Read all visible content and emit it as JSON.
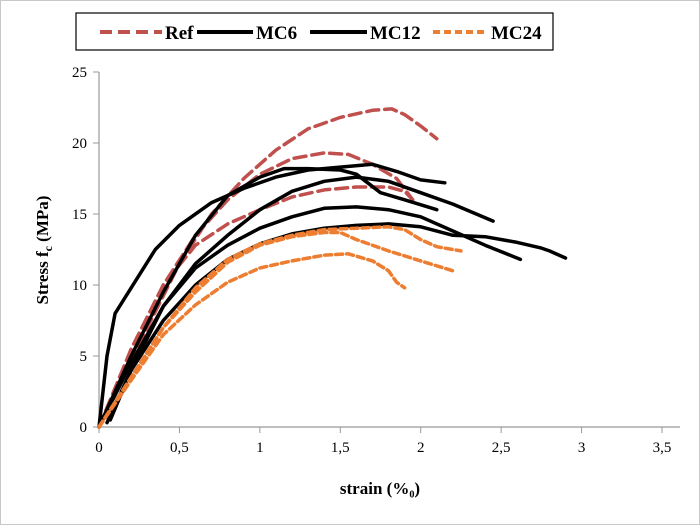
{
  "chart_data": {
    "type": "line",
    "title": "",
    "xlabel": "strain (%₀)",
    "ylabel_main": "Stress f",
    "ylabel_sub": "c",
    "ylabel_tail": " (MPa)",
    "xlim": [
      0,
      3.5
    ],
    "ylim": [
      0,
      25
    ],
    "xticks": [
      "0",
      "0,5",
      "1",
      "1,5",
      "2",
      "2,5",
      "3",
      "3,5"
    ],
    "yticks": [
      "0",
      "5",
      "10",
      "15",
      "20",
      "25"
    ],
    "grid": false,
    "legend_position": "top",
    "legend": [
      {
        "name": "Ref",
        "color": "#C0504D",
        "dash": "dashed"
      },
      {
        "name": "MC6",
        "color": "#000000",
        "dash": "solid"
      },
      {
        "name": "MC12",
        "color": "#000000",
        "dash": "dashdot"
      },
      {
        "name": "MC24",
        "color": "#ED7D31",
        "dash": "dotted"
      }
    ],
    "series": [
      {
        "group": "Ref",
        "points": [
          [
            0,
            0
          ],
          [
            0.1,
            2.5
          ],
          [
            0.3,
            7
          ],
          [
            0.5,
            11.5
          ],
          [
            0.7,
            15
          ],
          [
            0.9,
            17.5
          ],
          [
            1.1,
            19.5
          ],
          [
            1.3,
            21
          ],
          [
            1.5,
            21.8
          ],
          [
            1.7,
            22.3
          ],
          [
            1.82,
            22.4
          ],
          [
            1.9,
            22
          ],
          [
            2.0,
            21.2
          ],
          [
            2.1,
            20.3
          ]
        ]
      },
      {
        "group": "Ref",
        "points": [
          [
            0,
            0
          ],
          [
            0.2,
            5
          ],
          [
            0.4,
            10
          ],
          [
            0.6,
            13.5
          ],
          [
            0.8,
            16
          ],
          [
            1.0,
            17.8
          ],
          [
            1.2,
            18.9
          ],
          [
            1.4,
            19.3
          ],
          [
            1.55,
            19.2
          ],
          [
            1.7,
            18.5
          ],
          [
            1.85,
            17.5
          ],
          [
            1.95,
            16
          ]
        ]
      },
      {
        "group": "Ref",
        "points": [
          [
            0,
            0
          ],
          [
            0.2,
            5.5
          ],
          [
            0.4,
            10
          ],
          [
            0.6,
            12.8
          ],
          [
            0.8,
            14.3
          ],
          [
            1.0,
            15.3
          ],
          [
            1.2,
            16.2
          ],
          [
            1.4,
            16.7
          ],
          [
            1.6,
            16.9
          ],
          [
            1.8,
            16.9
          ],
          [
            1.9,
            16.6
          ],
          [
            1.95,
            16
          ]
        ]
      },
      {
        "group": "MC6",
        "points": [
          [
            0,
            0
          ],
          [
            0.05,
            5
          ],
          [
            0.1,
            8
          ],
          [
            0.2,
            9.8
          ],
          [
            0.35,
            12.5
          ],
          [
            0.5,
            14.2
          ],
          [
            0.7,
            15.8
          ],
          [
            0.9,
            16.8
          ],
          [
            1.1,
            17.6
          ],
          [
            1.3,
            18.1
          ],
          [
            1.5,
            18.3
          ],
          [
            1.7,
            18.5
          ],
          [
            1.85,
            18
          ],
          [
            2.0,
            17.4
          ],
          [
            2.15,
            17.2
          ]
        ]
      },
      {
        "group": "MC6",
        "points": [
          [
            0,
            0
          ],
          [
            0.2,
            5
          ],
          [
            0.4,
            9.5
          ],
          [
            0.6,
            13.5
          ],
          [
            0.8,
            16.3
          ],
          [
            1.0,
            17.6
          ],
          [
            1.15,
            18.2
          ],
          [
            1.3,
            18.2
          ],
          [
            1.5,
            18.1
          ],
          [
            1.6,
            17.8
          ],
          [
            1.75,
            16.5
          ],
          [
            1.9,
            16
          ],
          [
            2.1,
            15.3
          ]
        ]
      },
      {
        "group": "MC12",
        "points": [
          [
            0.07,
            0.5
          ],
          [
            0.2,
            4
          ],
          [
            0.4,
            8.5
          ],
          [
            0.6,
            11.5
          ],
          [
            0.8,
            13.5
          ],
          [
            1.0,
            15.3
          ],
          [
            1.2,
            16.6
          ],
          [
            1.4,
            17.3
          ],
          [
            1.6,
            17.6
          ],
          [
            1.8,
            17.3
          ],
          [
            2.0,
            16.5
          ],
          [
            2.2,
            15.7
          ],
          [
            2.45,
            14.5
          ]
        ]
      },
      {
        "group": "MC12",
        "points": [
          [
            0,
            0
          ],
          [
            0.2,
            4.5
          ],
          [
            0.4,
            8.5
          ],
          [
            0.6,
            11.2
          ],
          [
            0.8,
            12.8
          ],
          [
            1.0,
            14
          ],
          [
            1.2,
            14.8
          ],
          [
            1.4,
            15.4
          ],
          [
            1.6,
            15.5
          ],
          [
            1.8,
            15.3
          ],
          [
            2.0,
            14.8
          ],
          [
            2.2,
            13.8
          ],
          [
            2.4,
            12.8
          ],
          [
            2.62,
            11.8
          ]
        ]
      },
      {
        "group": "MC12",
        "points": [
          [
            0.05,
            0.3
          ],
          [
            0.2,
            4
          ],
          [
            0.4,
            7.5
          ],
          [
            0.6,
            10
          ],
          [
            0.8,
            11.8
          ],
          [
            1.0,
            12.9
          ],
          [
            1.2,
            13.6
          ],
          [
            1.4,
            14
          ],
          [
            1.6,
            14.2
          ],
          [
            1.8,
            14.3
          ],
          [
            2.0,
            14.1
          ],
          [
            2.2,
            13.5
          ],
          [
            2.4,
            13.4
          ],
          [
            2.6,
            13
          ],
          [
            2.75,
            12.6
          ],
          [
            2.8,
            12.4
          ],
          [
            2.9,
            11.9
          ]
        ]
      },
      {
        "group": "MC24",
        "points": [
          [
            0,
            0
          ],
          [
            0.2,
            3.5
          ],
          [
            0.4,
            7
          ],
          [
            0.6,
            9.8
          ],
          [
            0.8,
            11.8
          ],
          [
            1.0,
            12.9
          ],
          [
            1.2,
            13.5
          ],
          [
            1.4,
            13.9
          ],
          [
            1.6,
            14
          ],
          [
            1.8,
            14.1
          ],
          [
            1.9,
            13.9
          ],
          [
            2.0,
            13.2
          ],
          [
            2.1,
            12.7
          ],
          [
            2.25,
            12.4
          ]
        ]
      },
      {
        "group": "MC24",
        "points": [
          [
            0,
            0
          ],
          [
            0.2,
            3.5
          ],
          [
            0.4,
            7
          ],
          [
            0.6,
            9.5
          ],
          [
            0.8,
            11.6
          ],
          [
            1.0,
            12.8
          ],
          [
            1.2,
            13.4
          ],
          [
            1.4,
            13.7
          ],
          [
            1.5,
            13.7
          ],
          [
            1.6,
            13.2
          ],
          [
            1.8,
            12.4
          ],
          [
            2.0,
            11.7
          ],
          [
            2.2,
            11
          ]
        ]
      },
      {
        "group": "MC24",
        "points": [
          [
            0,
            0
          ],
          [
            0.2,
            3.3
          ],
          [
            0.4,
            6.5
          ],
          [
            0.6,
            8.6
          ],
          [
            0.8,
            10.2
          ],
          [
            1.0,
            11.2
          ],
          [
            1.2,
            11.7
          ],
          [
            1.4,
            12.1
          ],
          [
            1.55,
            12.2
          ],
          [
            1.7,
            11.7
          ],
          [
            1.8,
            11
          ],
          [
            1.85,
            10.2
          ],
          [
            1.9,
            9.8
          ]
        ]
      }
    ]
  }
}
